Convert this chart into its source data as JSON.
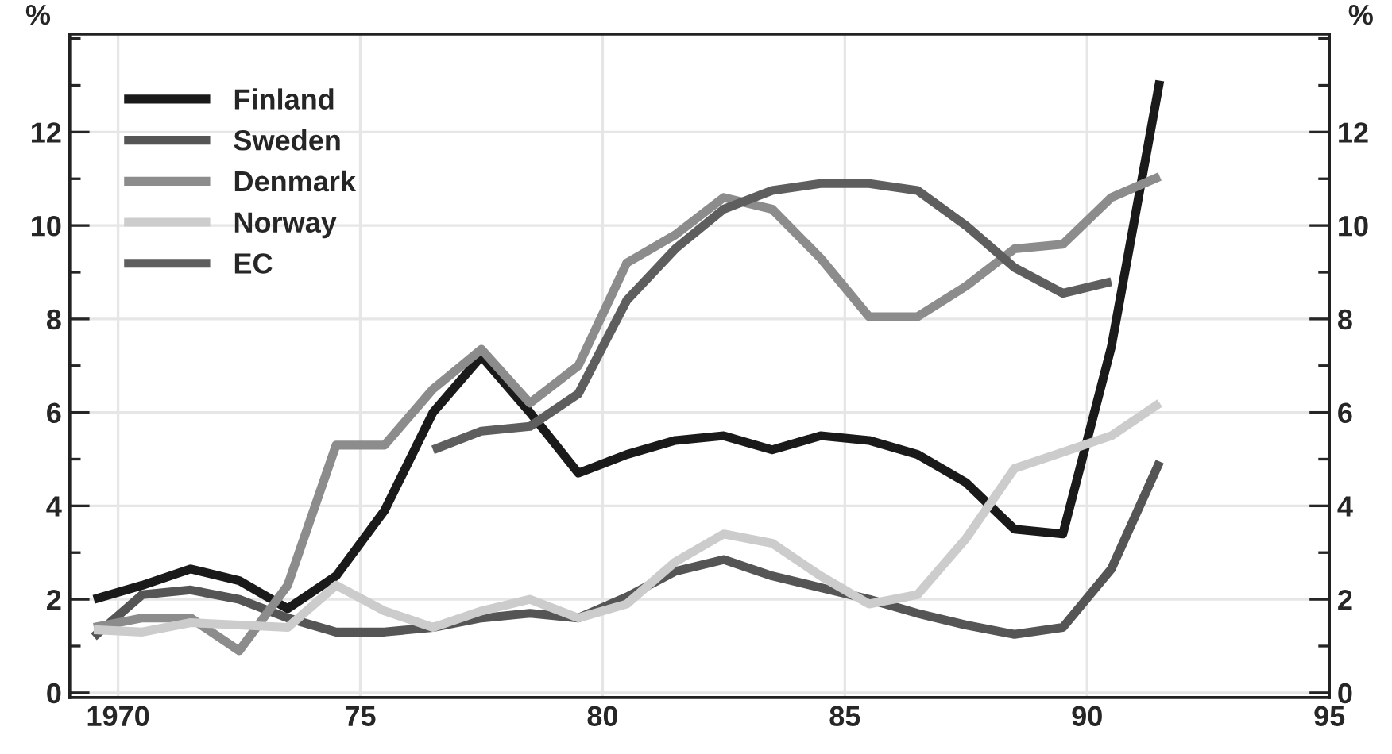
{
  "chart_data": {
    "type": "line",
    "x": [
      1969.5,
      1970.5,
      1971.5,
      1972.5,
      1973.5,
      1974.5,
      1975.5,
      1976.5,
      1977.5,
      1978.5,
      1979.5,
      1980.5,
      1981.5,
      1982.5,
      1983.5,
      1984.5,
      1985.5,
      1986.5,
      1987.5,
      1988.5,
      1989.5,
      1990.5,
      1991.5
    ],
    "series": [
      {
        "name": "Finland",
        "color": "#1a1a1a",
        "values": [
          2.0,
          2.3,
          2.65,
          2.4,
          1.8,
          2.5,
          3.9,
          6.0,
          7.2,
          6.0,
          4.7,
          5.1,
          5.4,
          5.5,
          5.2,
          5.5,
          5.4,
          5.1,
          4.5,
          3.5,
          3.4,
          7.4,
          13.1
        ]
      },
      {
        "name": "Sweden",
        "color": "#555555",
        "values": [
          1.2,
          2.1,
          2.2,
          2.0,
          1.6,
          1.3,
          1.3,
          1.4,
          1.6,
          1.7,
          1.6,
          2.05,
          2.6,
          2.85,
          2.5,
          2.25,
          2.0,
          1.7,
          1.45,
          1.25,
          1.4,
          2.65,
          4.95
        ]
      },
      {
        "name": "Denmark",
        "color": "#8c8c8c",
        "values": [
          1.4,
          1.6,
          1.6,
          0.9,
          2.3,
          5.3,
          5.3,
          6.5,
          7.35,
          6.2,
          7.0,
          9.2,
          9.8,
          10.6,
          10.35,
          9.3,
          8.05,
          8.05,
          8.7,
          9.5,
          9.6,
          10.6,
          11.05
        ]
      },
      {
        "name": "Norway",
        "color": "#cccccc",
        "values": [
          1.35,
          1.3,
          1.5,
          1.45,
          1.4,
          2.3,
          1.75,
          1.4,
          1.75,
          2.0,
          1.6,
          1.9,
          2.8,
          3.4,
          3.2,
          2.5,
          1.9,
          2.1,
          3.3,
          4.8,
          5.15,
          5.5,
          6.2
        ]
      },
      {
        "name": "EC",
        "color": "#5e5e5e",
        "values": [
          null,
          null,
          null,
          null,
          null,
          null,
          null,
          5.2,
          5.6,
          5.7,
          6.4,
          8.4,
          9.5,
          10.35,
          10.75,
          10.9,
          10.9,
          10.75,
          10.0,
          9.1,
          8.55,
          8.8,
          null
        ]
      }
    ],
    "xlim": [
      1969,
      1995
    ],
    "xticks": [
      {
        "value": 1970,
        "label": "1970"
      },
      {
        "value": 1975,
        "label": "75"
      },
      {
        "value": 1980,
        "label": "80"
      },
      {
        "value": 1985,
        "label": "85"
      },
      {
        "value": 1990,
        "label": "90"
      },
      {
        "value": 1995,
        "label": "95"
      }
    ],
    "ylim": [
      -0.1,
      14.1
    ],
    "yticks": [
      0,
      2,
      4,
      6,
      8,
      10,
      12
    ],
    "y2lim": [
      -0.1,
      14.1
    ],
    "y2ticks": [
      0,
      2,
      4,
      6,
      8,
      10,
      12
    ],
    "ylabel": "%",
    "y2label": "%",
    "grid": true,
    "legend": "top left",
    "marker": "none",
    "line_style": "solid"
  }
}
